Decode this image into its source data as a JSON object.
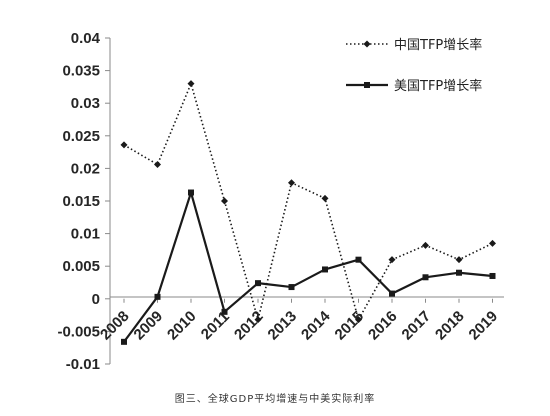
{
  "caption": "图三、全球GDP平均增速与中美实际利率",
  "chart_data": {
    "type": "line",
    "x": [
      "2008",
      "2009",
      "2010",
      "2011",
      "2012",
      "2013",
      "2014",
      "2015",
      "2016",
      "2017",
      "2018",
      "2019"
    ],
    "ylim": [
      -0.01,
      0.04
    ],
    "yticks": [
      "0.04",
      "0.035",
      "0.03",
      "0.025",
      "0.02",
      "0.015",
      "0.01",
      "0.005",
      "0",
      "-0.005",
      "-0.01"
    ],
    "legend_position": "top-right",
    "grid": false,
    "series": [
      {
        "name": "中国TFP增长率",
        "style": "dotted",
        "marker": "diamond",
        "color": "#1a1a1a",
        "values": [
          0.0236,
          0.0206,
          0.033,
          0.015,
          -0.0032,
          0.0178,
          0.0154,
          -0.0032,
          0.006,
          0.0082,
          0.006,
          0.0085
        ]
      },
      {
        "name": "美国TFP增长率",
        "style": "solid",
        "marker": "square",
        "color": "#1a1a1a",
        "values": [
          -0.0066,
          0.0003,
          0.0163,
          -0.002,
          0.0024,
          0.0018,
          0.0045,
          0.006,
          0.0008,
          0.0033,
          0.004,
          0.0035
        ]
      }
    ]
  }
}
